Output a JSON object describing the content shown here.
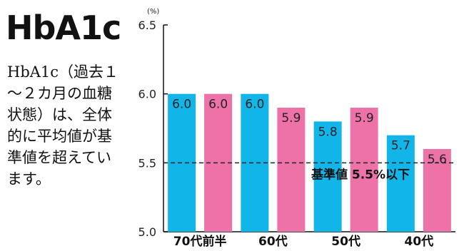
{
  "title": "HbA1c",
  "description": "HbA1c（過去１～２カ月の血糖状態）は、全体的に平均値が基準値を超えています。",
  "chart_data": {
    "type": "bar",
    "unit": "(%)",
    "categories": [
      "70代前半",
      "60代",
      "50代",
      "40代"
    ],
    "series": [
      {
        "color": "#12b5e8",
        "values": [
          6.0,
          6.0,
          5.8,
          5.7
        ]
      },
      {
        "color": "#ec72a8",
        "values": [
          6.0,
          5.9,
          5.9,
          5.6
        ]
      }
    ],
    "value_labels": [
      [
        "6.0",
        "6.0",
        "5.8",
        "5.7"
      ],
      [
        "6.0",
        "5.9",
        "5.9",
        "5.6"
      ]
    ],
    "ylim": [
      5.0,
      6.5
    ],
    "yticks": [
      "5.0",
      "5.5",
      "6.0",
      "6.5"
    ],
    "reference_line": {
      "value": 5.5,
      "label": "基準値 5.5%以下",
      "style": "dashed"
    },
    "grid": false
  }
}
